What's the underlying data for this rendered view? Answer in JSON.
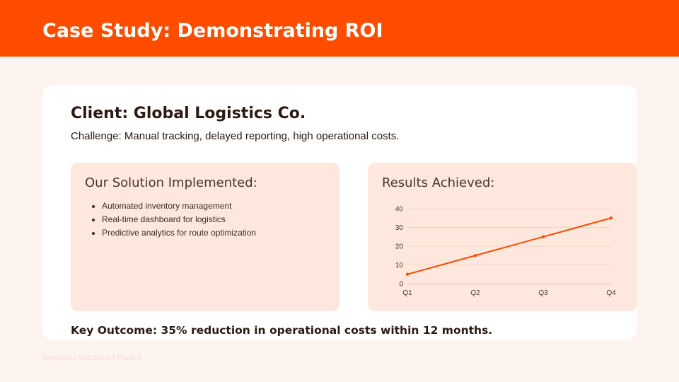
{
  "header": {
    "title": "Case Study: Demonstrating ROI"
  },
  "client": {
    "title": "Client: Global Logistics Co.",
    "challenge": "Challenge: Manual tracking, delayed reporting, high operational costs."
  },
  "solution": {
    "heading": "Our Solution Implemented:",
    "items": [
      "Automated inventory management",
      "Real-time dashboard for logistics",
      "Predictive analytics for route optimization"
    ]
  },
  "results": {
    "heading": "Results Achieved:"
  },
  "chart_data": {
    "type": "line",
    "categories": [
      "Q1",
      "Q2",
      "Q3",
      "Q4"
    ],
    "series": [
      {
        "values": [
          5,
          15,
          25,
          35
        ]
      }
    ],
    "ylim": [
      0,
      40
    ],
    "yticks": [
      0,
      10,
      20,
      30,
      40
    ],
    "grid": true,
    "line_color": "#ff4d00"
  },
  "key_outcome": "Key Outcome: 35% reduction in operational costs within 12 months.",
  "footer": "NextDocs Solutions | Page 6",
  "colors": {
    "accent": "#ff4d00",
    "panel": "#fee8de",
    "background": "#fef4ef"
  }
}
